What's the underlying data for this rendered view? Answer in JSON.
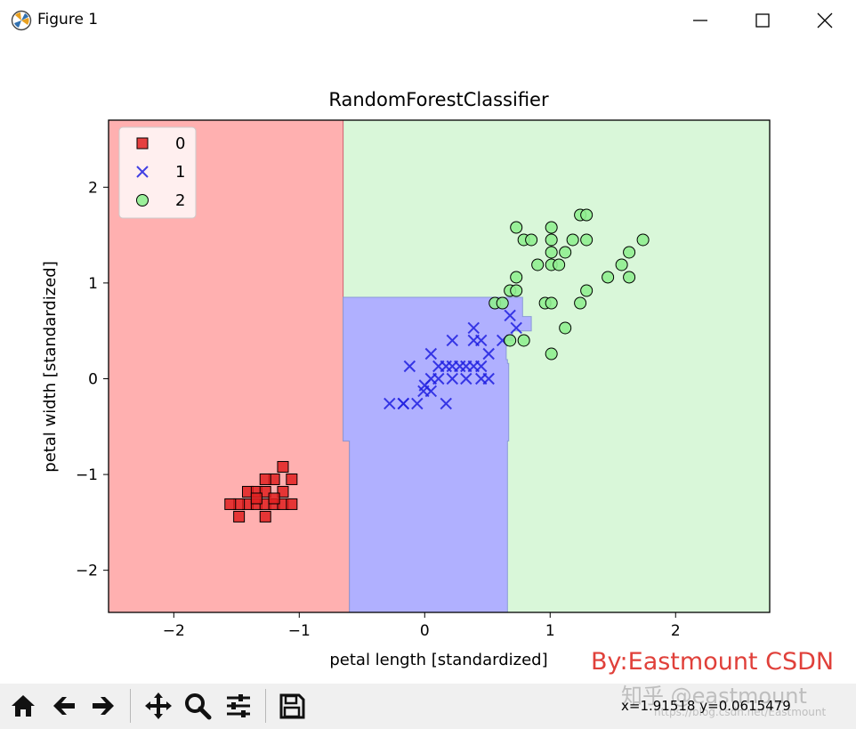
{
  "window": {
    "title": "Figure 1",
    "icons": {
      "app": "matplotlib-icon",
      "minimize": "minimize-icon",
      "maximize": "maximize-icon",
      "close": "close-icon"
    }
  },
  "toolbar": {
    "buttons": [
      "home-icon",
      "back-arrow-icon",
      "forward-arrow-icon",
      "pan-icon",
      "zoom-icon",
      "configure-icon",
      "save-icon"
    ],
    "coordinates": "x=1.91518      y=0.0615479"
  },
  "overlay": {
    "credit": "By:Eastmount CSDN",
    "watermark": "知乎 @eastmount",
    "watermark_url": "https://blog.csdn.net/Eastmount"
  },
  "chart_data": {
    "type": "scatter",
    "title": "RandomForestClassifier",
    "xlabel": "petal length [standardized]",
    "ylabel": "petal width [standardized]",
    "xlim": [
      -2.52,
      2.75
    ],
    "ylim": [
      -2.44,
      2.7
    ],
    "xticks": [
      -2,
      -1,
      0,
      1,
      2
    ],
    "yticks": [
      -2,
      -1,
      0,
      1,
      2
    ],
    "legend_position": "upper-left",
    "region_colors": {
      "0": "#ffb0b0",
      "1": "#b0b0ff",
      "2": "#d9f7d9"
    },
    "decision_regions": [
      {
        "class": "0",
        "polygon": [
          [
            -2.52,
            -2.44
          ],
          [
            -0.6,
            -2.44
          ],
          [
            -0.6,
            -0.65
          ],
          [
            -0.65,
            -0.65
          ],
          [
            -0.65,
            2.7
          ],
          [
            -2.52,
            2.7
          ]
        ]
      },
      {
        "class": "1",
        "polygon": [
          [
            -0.65,
            -0.65
          ],
          [
            -0.6,
            -0.65
          ],
          [
            -0.6,
            -2.44
          ],
          [
            0.66,
            -2.44
          ],
          [
            0.66,
            -0.65
          ],
          [
            0.67,
            -0.65
          ],
          [
            0.67,
            0.16
          ],
          [
            0.66,
            0.16
          ],
          [
            0.66,
            0.2
          ],
          [
            0.65,
            0.2
          ],
          [
            0.65,
            0.4
          ],
          [
            0.7,
            0.4
          ],
          [
            0.7,
            0.5
          ],
          [
            0.85,
            0.5
          ],
          [
            0.85,
            0.65
          ],
          [
            0.78,
            0.65
          ],
          [
            0.78,
            0.85
          ],
          [
            -0.65,
            0.85
          ]
        ]
      }
    ],
    "series": [
      {
        "name": "0",
        "marker": "square",
        "color": "#e02020",
        "points": [
          [
            -1.13,
            -0.92
          ],
          [
            -1.2,
            -1.05
          ],
          [
            -1.27,
            -1.05
          ],
          [
            -1.06,
            -1.05
          ],
          [
            -1.41,
            -1.18
          ],
          [
            -1.34,
            -1.18
          ],
          [
            -1.27,
            -1.18
          ],
          [
            -1.13,
            -1.18
          ],
          [
            -1.41,
            -1.31
          ],
          [
            -1.34,
            -1.31
          ],
          [
            -1.27,
            -1.31
          ],
          [
            -1.2,
            -1.31
          ],
          [
            -1.13,
            -1.31
          ],
          [
            -1.48,
            -1.31
          ],
          [
            -1.55,
            -1.31
          ],
          [
            -1.06,
            -1.31
          ],
          [
            -1.27,
            -1.44
          ],
          [
            -1.48,
            -1.44
          ],
          [
            -1.34,
            -1.25
          ],
          [
            -1.2,
            -1.25
          ]
        ]
      },
      {
        "name": "1",
        "marker": "x",
        "color": "#2020e0",
        "points": [
          [
            -0.28,
            -0.26
          ],
          [
            -0.17,
            -0.26
          ],
          [
            -0.06,
            -0.26
          ],
          [
            0.17,
            -0.26
          ],
          [
            -0.17,
            -0.26
          ],
          [
            -0.01,
            -0.13
          ],
          [
            0.05,
            -0.13
          ],
          [
            0.05,
            0.0
          ],
          [
            0.11,
            0.0
          ],
          [
            0.22,
            0.0
          ],
          [
            0.33,
            0.0
          ],
          [
            0.45,
            0.0
          ],
          [
            0.51,
            0.0
          ],
          [
            -0.12,
            0.13
          ],
          [
            0.11,
            0.13
          ],
          [
            0.17,
            0.13
          ],
          [
            0.22,
            0.13
          ],
          [
            0.28,
            0.13
          ],
          [
            0.33,
            0.13
          ],
          [
            0.39,
            0.13
          ],
          [
            0.45,
            0.13
          ],
          [
            0.05,
            0.26
          ],
          [
            0.51,
            0.26
          ],
          [
            0.22,
            0.4
          ],
          [
            0.39,
            0.4
          ],
          [
            0.45,
            0.4
          ],
          [
            0.62,
            0.4
          ],
          [
            0.39,
            0.53
          ],
          [
            0.73,
            0.53
          ],
          [
            0.68,
            0.66
          ],
          [
            0.0,
            -0.07
          ]
        ]
      },
      {
        "name": "2",
        "marker": "circle",
        "color": "#90ee90",
        "points": [
          [
            0.73,
            1.58
          ],
          [
            1.01,
            1.58
          ],
          [
            1.24,
            1.71
          ],
          [
            1.29,
            1.71
          ],
          [
            0.79,
            1.45
          ],
          [
            0.85,
            1.45
          ],
          [
            1.01,
            1.45
          ],
          [
            1.18,
            1.45
          ],
          [
            1.29,
            1.45
          ],
          [
            1.74,
            1.45
          ],
          [
            1.01,
            1.32
          ],
          [
            1.12,
            1.32
          ],
          [
            1.63,
            1.32
          ],
          [
            0.9,
            1.19
          ],
          [
            1.01,
            1.19
          ],
          [
            1.07,
            1.19
          ],
          [
            1.57,
            1.19
          ],
          [
            0.73,
            1.06
          ],
          [
            1.46,
            1.06
          ],
          [
            1.63,
            1.06
          ],
          [
            0.68,
            0.92
          ],
          [
            0.73,
            0.92
          ],
          [
            1.29,
            0.92
          ],
          [
            0.56,
            0.79
          ],
          [
            0.62,
            0.79
          ],
          [
            0.96,
            0.79
          ],
          [
            1.01,
            0.79
          ],
          [
            1.24,
            0.79
          ],
          [
            0.79,
            0.4
          ],
          [
            0.68,
            0.4
          ],
          [
            1.12,
            0.53
          ],
          [
            1.01,
            0.26
          ]
        ]
      }
    ]
  }
}
